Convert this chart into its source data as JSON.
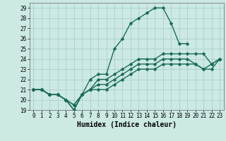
{
  "xlabel": "Humidex (Indice chaleur)",
  "xlim": [
    -0.5,
    23.5
  ],
  "ylim": [
    19,
    29.5
  ],
  "xticks": [
    0,
    1,
    2,
    3,
    4,
    5,
    6,
    7,
    8,
    9,
    10,
    11,
    12,
    13,
    14,
    15,
    16,
    17,
    18,
    19,
    20,
    21,
    22,
    23
  ],
  "yticks": [
    19,
    20,
    21,
    22,
    23,
    24,
    25,
    26,
    27,
    28,
    29
  ],
  "background_color": "#cce9e4",
  "grid_color": "#aacfca",
  "line_color": "#1a6b5a",
  "series": [
    {
      "x": [
        0,
        1,
        2,
        3,
        4,
        5,
        6,
        7,
        8,
        9,
        10,
        11,
        12,
        13,
        14,
        15,
        16,
        17,
        18,
        19
      ],
      "y": [
        21.0,
        21.0,
        20.5,
        20.5,
        20.0,
        19.0,
        20.5,
        22.0,
        22.5,
        22.5,
        25.0,
        26.0,
        27.5,
        28.0,
        28.5,
        29.0,
        29.0,
        27.5,
        25.5,
        25.5
      ]
    },
    {
      "x": [
        0,
        1,
        2,
        3,
        4,
        5,
        6,
        7,
        8,
        9,
        10,
        11,
        12,
        13,
        14,
        15,
        16,
        17,
        18,
        19,
        20,
        21,
        22,
        23
      ],
      "y": [
        21.0,
        21.0,
        20.5,
        20.5,
        20.0,
        19.0,
        20.5,
        21.0,
        22.0,
        22.0,
        22.5,
        23.0,
        23.5,
        24.0,
        24.0,
        24.0,
        24.5,
        24.5,
        24.5,
        24.5,
        24.5,
        24.5,
        23.5,
        24.0
      ]
    },
    {
      "x": [
        0,
        1,
        2,
        3,
        4,
        5,
        6,
        7,
        8,
        9,
        10,
        11,
        12,
        13,
        14,
        15,
        16,
        17,
        18,
        19,
        20,
        21,
        22,
        23
      ],
      "y": [
        21.0,
        21.0,
        20.5,
        20.5,
        20.0,
        19.5,
        20.5,
        21.0,
        21.5,
        21.5,
        22.0,
        22.5,
        23.0,
        23.5,
        23.5,
        23.5,
        24.0,
        24.0,
        24.0,
        24.0,
        23.5,
        23.0,
        23.5,
        24.0
      ]
    },
    {
      "x": [
        0,
        1,
        2,
        3,
        4,
        5,
        6,
        7,
        8,
        9,
        10,
        11,
        12,
        13,
        14,
        15,
        16,
        17,
        18,
        19,
        20,
        21,
        22,
        23
      ],
      "y": [
        21.0,
        21.0,
        20.5,
        20.5,
        20.0,
        19.5,
        20.5,
        21.0,
        21.0,
        21.0,
        21.5,
        22.0,
        22.5,
        23.0,
        23.0,
        23.0,
        23.5,
        23.5,
        23.5,
        23.5,
        23.5,
        23.0,
        23.0,
        24.0
      ]
    }
  ],
  "marker": "D",
  "markersize": 2.5,
  "linewidth": 1.0,
  "xlabel_fontsize": 7,
  "tick_fontsize": 5.5
}
